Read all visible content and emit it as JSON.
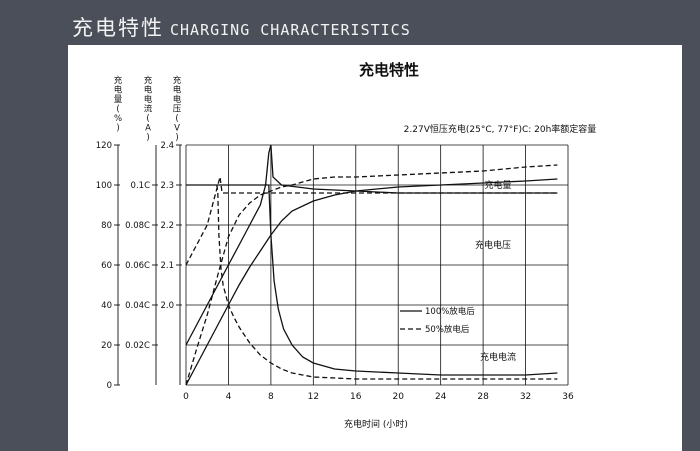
{
  "page": {
    "heading_zh": "充电特性",
    "heading_en": "CHARGING CHARACTERISTICS"
  },
  "colors": {
    "background": "#4a4f59",
    "panel": "#ffffff",
    "ink": "#111111"
  },
  "chart_data": {
    "type": "line",
    "title": "充电特性",
    "subtitle": "2.27V恒压充电(25°C, 77°F)C: 20h率额定容量",
    "xlabel": "充电时间 (小时)",
    "xlim": [
      0,
      36
    ],
    "x_ticks": [
      "0",
      "4",
      "8",
      "12",
      "16",
      "20",
      "24",
      "28",
      "32",
      "36"
    ],
    "axes": [
      {
        "key": "soc",
        "label": "充电量(%)",
        "ylim": [
          0,
          120
        ],
        "ticks": [
          {
            "value": 0,
            "label": "0"
          },
          {
            "value": 20,
            "label": "20"
          },
          {
            "value": 40,
            "label": "40"
          },
          {
            "value": 60,
            "label": "60"
          },
          {
            "value": 80,
            "label": "80"
          },
          {
            "value": 100,
            "label": "100"
          },
          {
            "value": 120,
            "label": "120"
          }
        ]
      },
      {
        "key": "current",
        "label": "充电电流(A)",
        "ylim": [
          0,
          0.12
        ],
        "ticks": [
          {
            "value": 0.02,
            "label": "0.02C"
          },
          {
            "value": 0.04,
            "label": "0.04C"
          },
          {
            "value": 0.06,
            "label": "0.06C"
          },
          {
            "value": 0.08,
            "label": "0.08C"
          },
          {
            "value": 0.1,
            "label": "0.1C"
          }
        ]
      },
      {
        "key": "voltage",
        "label": "充电电压(V)",
        "ylim": [
          1.8,
          2.4
        ],
        "ticks": [
          {
            "value": 2.0,
            "label": "2.0"
          },
          {
            "value": 2.1,
            "label": "2.1"
          },
          {
            "value": 2.2,
            "label": "2.2"
          },
          {
            "value": 2.3,
            "label": "2.3"
          },
          {
            "value": 2.4,
            "label": "2.4"
          }
        ]
      }
    ],
    "grid": true,
    "curve_labels": [
      "充电量",
      "充电电压",
      "充电电流"
    ],
    "legend": {
      "placement": "right-middle",
      "entries": [
        {
          "label": "100%放电后",
          "style": "solid"
        },
        {
          "label": "50%放电后",
          "style": "dashed"
        }
      ]
    },
    "series": [
      {
        "curve": "充电量",
        "condition": "100%放电后",
        "style": "solid",
        "axis": "soc",
        "x": [
          0,
          1,
          2,
          3,
          4,
          5,
          6,
          7,
          8,
          9,
          10,
          12,
          14,
          16,
          20,
          24,
          28,
          32,
          35
        ],
        "y": [
          0,
          10,
          20,
          30,
          40,
          50,
          59,
          67,
          75,
          82,
          87,
          92,
          95,
          97,
          99,
          100,
          101,
          102,
          103
        ]
      },
      {
        "curve": "充电量",
        "condition": "50%放电后",
        "style": "dashed",
        "axis": "soc",
        "x": [
          0,
          1,
          2,
          3,
          4,
          5,
          6,
          7,
          8,
          9,
          10,
          12,
          14,
          16,
          20,
          24,
          28,
          32,
          35
        ],
        "y": [
          0,
          18,
          35,
          55,
          74,
          85,
          91,
          95,
          97,
          99,
          100,
          103,
          104,
          104,
          105,
          106,
          107,
          109,
          110
        ]
      },
      {
        "curve": "充电电压",
        "condition": "100%放电后",
        "style": "solid",
        "axis": "voltage",
        "x": [
          0,
          1,
          2,
          3,
          4,
          5,
          6,
          7,
          7.5,
          7.8,
          8,
          8.2,
          9,
          12,
          16,
          20,
          24,
          28,
          32,
          35
        ],
        "y": [
          1.9,
          1.95,
          2.0,
          2.05,
          2.1,
          2.15,
          2.2,
          2.25,
          2.3,
          2.38,
          2.4,
          2.32,
          2.3,
          2.29,
          2.285,
          2.28,
          2.28,
          2.28,
          2.28,
          2.28
        ]
      },
      {
        "curve": "充电电压",
        "condition": "50%放电后",
        "style": "dashed",
        "axis": "voltage",
        "x": [
          0,
          1,
          2,
          2.8,
          3.2,
          3.4,
          3.6,
          4,
          6,
          8,
          12,
          16,
          20,
          24,
          28,
          32,
          35
        ],
        "y": [
          2.1,
          2.15,
          2.2,
          2.28,
          2.32,
          2.28,
          2.28,
          2.28,
          2.28,
          2.28,
          2.28,
          2.28,
          2.28,
          2.28,
          2.28,
          2.28,
          2.28
        ]
      },
      {
        "curve": "充电电流",
        "condition": "100%放电后",
        "style": "solid",
        "axis": "current",
        "x": [
          0,
          0.5,
          2,
          4,
          6,
          7.5,
          7.8,
          8,
          8.3,
          8.7,
          9.2,
          10,
          11,
          12,
          14,
          16,
          20,
          24,
          28,
          32,
          35
        ],
        "y": [
          0.1,
          0.1,
          0.1,
          0.1,
          0.1,
          0.1,
          0.1,
          0.075,
          0.052,
          0.038,
          0.028,
          0.02,
          0.014,
          0.011,
          0.008,
          0.007,
          0.006,
          0.005,
          0.005,
          0.005,
          0.006
        ]
      },
      {
        "curve": "充电电流",
        "condition": "50%放电后",
        "style": "dashed",
        "axis": "current",
        "x": [
          2.9,
          3,
          3.1,
          3.3,
          3.5,
          4,
          4.5,
          5,
          6,
          7,
          8,
          9,
          10,
          12,
          16,
          20,
          24,
          28,
          32,
          35
        ],
        "y": [
          0.1,
          0.096,
          0.075,
          0.058,
          0.05,
          0.04,
          0.034,
          0.029,
          0.021,
          0.015,
          0.011,
          0.008,
          0.006,
          0.004,
          0.003,
          0.003,
          0.003,
          0.003,
          0.003,
          0.003
        ]
      }
    ]
  }
}
